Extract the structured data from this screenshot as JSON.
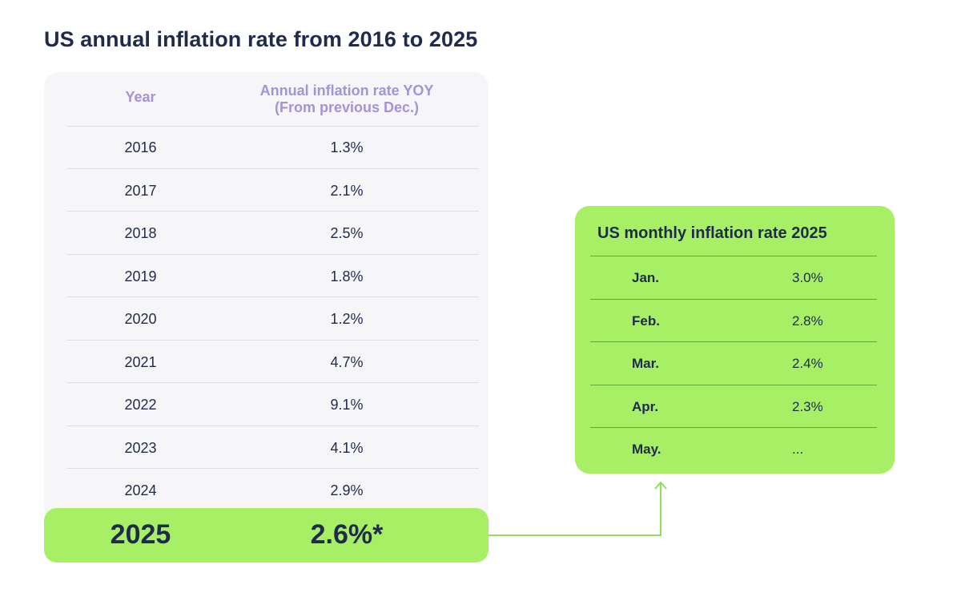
{
  "chart_data": [
    {
      "type": "table",
      "title": "US annual inflation rate from 2016 to 2025",
      "columns": [
        "Year",
        "Annual inflation rate YOY\n(From previous Dec.)"
      ],
      "column_header_lines": [
        "Annual inflation rate YOY",
        "(From previous Dec.)"
      ],
      "rows": [
        {
          "year": "2016",
          "rate": "1.3%"
        },
        {
          "year": "2017",
          "rate": "2.1%"
        },
        {
          "year": "2018",
          "rate": "2.5%"
        },
        {
          "year": "2019",
          "rate": "1.8%"
        },
        {
          "year": "2020",
          "rate": "1.2%"
        },
        {
          "year": "2021",
          "rate": "4.7%"
        },
        {
          "year": "2022",
          "rate": "9.1%"
        },
        {
          "year": "2023",
          "rate": "4.1%"
        },
        {
          "year": "2024",
          "rate": "2.9%"
        }
      ],
      "highlight_row": {
        "year": "2025",
        "rate": "2.6%*"
      }
    },
    {
      "type": "table",
      "title": "US monthly inflation rate 2025",
      "rows": [
        {
          "month": "Jan.",
          "rate": "3.0%"
        },
        {
          "month": "Feb.",
          "rate": "2.8%"
        },
        {
          "month": "Mar.",
          "rate": "2.4%"
        },
        {
          "month": "Apr.",
          "rate": "2.3%"
        },
        {
          "month": "May.",
          "rate": "..."
        }
      ]
    }
  ],
  "colors": {
    "accent_green": "#a7f066",
    "header_purple": "#a493d6",
    "text_navy": "#1f2a4d",
    "panel_gray": "#f6f6f9",
    "connector": "#8ee05a"
  }
}
